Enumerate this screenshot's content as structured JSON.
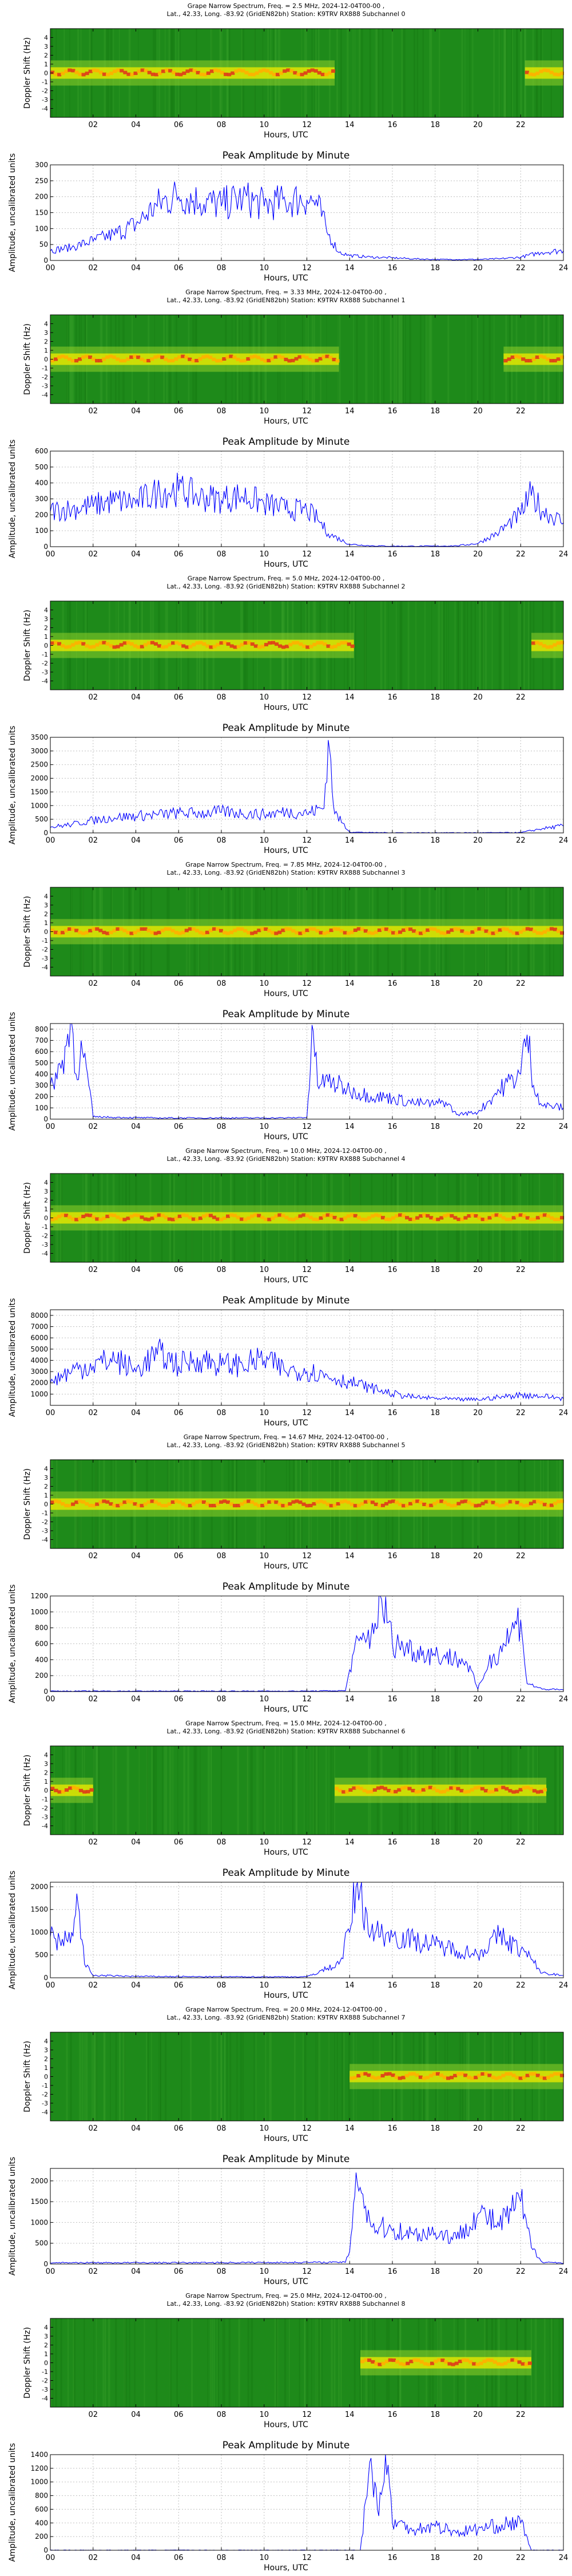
{
  "figure": {
    "common": {
      "spectrum_header_suffix": "Lat., 42.33, Long. -83.92 (GridEN82bh) Station: K9TRV RX888 ",
      "spectrum_ylabel": "Doppler Shift (Hz)",
      "xlabel": "Hours, UTC",
      "amp_title": "Peak Amplitude by Minute",
      "amp_ylabel": "Amplitude, uncalibrated units"
    },
    "channels": [
      {
        "title_line1": "Grape Narrow Spectrum, Freq. = 2.5 MHz, 2024-12-04T00-00 ,",
        "subchannel": "Subchannel 0"
      },
      {
        "title_line1": "Grape Narrow Spectrum, Freq. = 3.33 MHz, 2024-12-04T00-00 ,",
        "subchannel": "Subchannel 1"
      },
      {
        "title_line1": "Grape Narrow Spectrum, Freq. = 5.0 MHz, 2024-12-04T00-00 ,",
        "subchannel": "Subchannel 2"
      },
      {
        "title_line1": "Grape Narrow Spectrum, Freq. = 7.85 MHz, 2024-12-04T00-00 ,",
        "subchannel": "Subchannel 3"
      },
      {
        "title_line1": "Grape Narrow Spectrum, Freq. = 10.0 MHz, 2024-12-04T00-00 ,",
        "subchannel": "Subchannel 4"
      },
      {
        "title_line1": "Grape Narrow Spectrum, Freq. = 14.67 MHz, 2024-12-04T00-00 ,",
        "subchannel": "Subchannel 5"
      },
      {
        "title_line1": "Grape Narrow Spectrum, Freq. = 15.0 MHz, 2024-12-04T00-00 ,",
        "subchannel": "Subchannel 6"
      },
      {
        "title_line1": "Grape Narrow Spectrum, Freq. = 20.0 MHz, 2024-12-04T00-00 ,",
        "subchannel": "Subchannel 7"
      },
      {
        "title_line1": "Grape Narrow Spectrum, Freq. = 25.0 MHz, 2024-12-04T00-00 ,",
        "subchannel": "Subchannel 8"
      }
    ]
  },
  "chart_data": [
    {
      "type": "heatmap",
      "name": "spectrum-2.5",
      "xlim": [
        0,
        24
      ],
      "ylim": [
        -5,
        5
      ],
      "x_ticks": [
        "02",
        "04",
        "06",
        "08",
        "10",
        "12",
        "14",
        "16",
        "18",
        "20",
        "22"
      ],
      "y_ticks": [
        "4",
        "3",
        "2",
        "1",
        "0",
        "-1",
        "-2",
        "-3",
        "-4"
      ],
      "signal_segments": [
        [
          0,
          13.3
        ],
        [
          22.2,
          24
        ]
      ],
      "colormap": "green-yellow-red"
    },
    {
      "type": "line",
      "name": "amp-2.5",
      "xlim": [
        0,
        24
      ],
      "ylim": [
        0,
        300
      ],
      "x_ticks": [
        "00",
        "02",
        "04",
        "06",
        "08",
        "10",
        "12",
        "14",
        "16",
        "18",
        "20",
        "22",
        "24"
      ],
      "y_ticks": [
        "0",
        "50",
        "100",
        "150",
        "200",
        "250",
        "300"
      ],
      "x": [
        0,
        1,
        2,
        3,
        4,
        5,
        6,
        7,
        8,
        9,
        10,
        11,
        12,
        12.5,
        13,
        13.5,
        14,
        15,
        16,
        17,
        18,
        19,
        20,
        21,
        22,
        23,
        24
      ],
      "y": [
        30,
        40,
        60,
        80,
        110,
        170,
        200,
        180,
        170,
        190,
        170,
        180,
        190,
        170,
        80,
        25,
        15,
        10,
        8,
        5,
        3,
        3,
        3,
        5,
        10,
        25,
        30
      ]
    },
    {
      "type": "heatmap",
      "name": "spectrum-3.33",
      "xlim": [
        0,
        24
      ],
      "ylim": [
        -5,
        5
      ],
      "x_ticks": [
        "02",
        "04",
        "06",
        "08",
        "10",
        "12",
        "14",
        "16",
        "18",
        "20",
        "22"
      ],
      "y_ticks": [
        "4",
        "3",
        "2",
        "1",
        "0",
        "-1",
        "-2",
        "-3",
        "-4"
      ],
      "signal_segments": [
        [
          0,
          13.5
        ],
        [
          21.2,
          24
        ]
      ],
      "colormap": "green-yellow-red"
    },
    {
      "type": "line",
      "name": "amp-3.33",
      "xlim": [
        0,
        24
      ],
      "ylim": [
        0,
        600
      ],
      "x_ticks": [
        "00",
        "02",
        "04",
        "06",
        "08",
        "10",
        "12",
        "14",
        "16",
        "18",
        "20",
        "22",
        "24"
      ],
      "y_ticks": [
        "0",
        "100",
        "200",
        "300",
        "400",
        "500",
        "600"
      ],
      "x": [
        0,
        1,
        2,
        3,
        4,
        5,
        6,
        7,
        8,
        9,
        10,
        11,
        12,
        12.5,
        13,
        14,
        15,
        16,
        17,
        18,
        19,
        20,
        21,
        22,
        22.5,
        23,
        24
      ],
      "y": [
        220,
        230,
        250,
        280,
        270,
        330,
        350,
        300,
        290,
        310,
        260,
        230,
        220,
        170,
        80,
        15,
        5,
        3,
        3,
        3,
        5,
        20,
        90,
        200,
        320,
        220,
        150
      ]
    },
    {
      "type": "heatmap",
      "name": "spectrum-5.0",
      "xlim": [
        0,
        24
      ],
      "ylim": [
        -5,
        5
      ],
      "x_ticks": [
        "02",
        "04",
        "06",
        "08",
        "10",
        "12",
        "14",
        "16",
        "18",
        "20",
        "22"
      ],
      "y_ticks": [
        "4",
        "3",
        "2",
        "1",
        "0",
        "-1",
        "-2",
        "-3",
        "-4"
      ],
      "signal_segments": [
        [
          0,
          14.2
        ],
        [
          22.5,
          24
        ]
      ],
      "colormap": "green-yellow-red"
    },
    {
      "type": "line",
      "name": "amp-5.0",
      "xlim": [
        0,
        24
      ],
      "ylim": [
        0,
        3500
      ],
      "x_ticks": [
        "00",
        "02",
        "04",
        "06",
        "08",
        "10",
        "12",
        "14",
        "16",
        "18",
        "20",
        "22",
        "24"
      ],
      "y_ticks": [
        "0",
        "500",
        "1000",
        "1500",
        "2000",
        "2500",
        "3000",
        "3500"
      ],
      "x": [
        0,
        1,
        2,
        3,
        4,
        5,
        6,
        7,
        8,
        9,
        10,
        11,
        12,
        12.8,
        13,
        13.3,
        14,
        15,
        16,
        18,
        20,
        22,
        23,
        24
      ],
      "y": [
        200,
        300,
        450,
        550,
        600,
        650,
        700,
        700,
        750,
        700,
        650,
        750,
        700,
        900,
        3400,
        700,
        30,
        10,
        5,
        5,
        5,
        10,
        150,
        250
      ]
    },
    {
      "type": "heatmap",
      "name": "spectrum-7.85",
      "xlim": [
        0,
        24
      ],
      "ylim": [
        -5,
        5
      ],
      "x_ticks": [
        "02",
        "04",
        "06",
        "08",
        "10",
        "12",
        "14",
        "16",
        "18",
        "20",
        "22"
      ],
      "y_ticks": [
        "4",
        "3",
        "2",
        "1",
        "0",
        "-1",
        "-2",
        "-3",
        "-4"
      ],
      "signal_segments": [
        [
          0,
          24
        ]
      ],
      "colormap": "green-yellow-red"
    },
    {
      "type": "line",
      "name": "amp-7.85",
      "xlim": [
        0,
        24
      ],
      "ylim": [
        0,
        850
      ],
      "x_ticks": [
        "00",
        "02",
        "04",
        "06",
        "08",
        "10",
        "12",
        "14",
        "16",
        "18",
        "20",
        "22",
        "24"
      ],
      "y_ticks": [
        "0",
        "100",
        "200",
        "300",
        "400",
        "500",
        "600",
        "700",
        "800"
      ],
      "x": [
        0,
        0.5,
        1,
        1.2,
        1.5,
        1.8,
        2,
        3,
        5,
        7,
        9,
        11,
        12,
        12.3,
        12.5,
        13,
        14,
        15,
        16,
        17,
        18,
        18.5,
        19,
        20,
        21,
        22,
        22.3,
        22.6,
        23,
        24
      ],
      "y": [
        300,
        450,
        850,
        400,
        600,
        300,
        20,
        15,
        10,
        10,
        10,
        10,
        15,
        780,
        300,
        330,
        250,
        200,
        180,
        140,
        130,
        150,
        40,
        60,
        250,
        400,
        750,
        300,
        120,
        100
      ]
    },
    {
      "type": "heatmap",
      "name": "spectrum-10.0",
      "xlim": [
        0,
        24
      ],
      "ylim": [
        -5,
        5
      ],
      "x_ticks": [
        "02",
        "04",
        "06",
        "08",
        "10",
        "12",
        "14",
        "16",
        "18",
        "20",
        "22"
      ],
      "y_ticks": [
        "4",
        "3",
        "2",
        "1",
        "0",
        "-1",
        "-2",
        "-3",
        "-4"
      ],
      "signal_segments": [
        [
          0,
          24
        ]
      ],
      "colormap": "green-yellow-red"
    },
    {
      "type": "line",
      "name": "amp-10.0",
      "xlim": [
        0,
        24
      ],
      "ylim": [
        0,
        8500
      ],
      "x_ticks": [
        "00",
        "02",
        "04",
        "06",
        "08",
        "10",
        "12",
        "14",
        "16",
        "18",
        "20",
        "22",
        "24"
      ],
      "y_ticks": [
        "1000",
        "2000",
        "3000",
        "4000",
        "5000",
        "6000",
        "7000",
        "8000"
      ],
      "x": [
        0,
        1,
        2,
        3,
        4,
        5,
        6,
        7,
        8,
        9,
        10,
        11,
        12,
        13,
        14,
        15,
        16,
        17,
        18,
        19,
        20,
        21,
        22,
        23,
        24
      ],
      "y": [
        2000,
        3000,
        3500,
        4000,
        3000,
        4500,
        3500,
        4000,
        3500,
        3500,
        4000,
        3000,
        3000,
        2500,
        2000,
        1500,
        1000,
        700,
        600,
        500,
        500,
        700,
        900,
        800,
        600
      ]
    },
    {
      "type": "heatmap",
      "name": "spectrum-14.67",
      "xlim": [
        0,
        24
      ],
      "ylim": [
        -5,
        5
      ],
      "x_ticks": [
        "02",
        "04",
        "06",
        "08",
        "10",
        "12",
        "14",
        "16",
        "18",
        "20",
        "22"
      ],
      "y_ticks": [
        "4",
        "3",
        "2",
        "1",
        "0",
        "-1",
        "-2",
        "-3",
        "-4"
      ],
      "signal_segments": [
        [
          0,
          24
        ]
      ],
      "colormap": "green-yellow-red"
    },
    {
      "type": "line",
      "name": "amp-14.67",
      "xlim": [
        0,
        24
      ],
      "ylim": [
        0,
        1200
      ],
      "x_ticks": [
        "00",
        "02",
        "04",
        "06",
        "08",
        "10",
        "12",
        "14",
        "16",
        "18",
        "20",
        "22",
        "24"
      ],
      "y_ticks": [
        "0",
        "200",
        "400",
        "600",
        "800",
        "1000",
        "1200"
      ],
      "x": [
        0,
        6,
        12,
        13.8,
        14.2,
        15,
        15.5,
        16,
        17,
        18,
        19,
        19.5,
        20,
        20.5,
        21,
        21.5,
        22,
        22.3,
        23,
        24
      ],
      "y": [
        5,
        5,
        5,
        10,
        500,
        700,
        1150,
        600,
        500,
        450,
        400,
        350,
        30,
        350,
        500,
        700,
        900,
        100,
        30,
        20
      ]
    },
    {
      "type": "heatmap",
      "name": "spectrum-15.0",
      "xlim": [
        0,
        24
      ],
      "ylim": [
        -5,
        5
      ],
      "x_ticks": [
        "02",
        "04",
        "06",
        "08",
        "10",
        "12",
        "14",
        "16",
        "18",
        "20",
        "22"
      ],
      "y_ticks": [
        "4",
        "3",
        "2",
        "1",
        "0",
        "-1",
        "-2",
        "-3",
        "-4"
      ],
      "signal_segments": [
        [
          0,
          2
        ],
        [
          13.3,
          23.2
        ]
      ],
      "colormap": "green-yellow-red"
    },
    {
      "type": "line",
      "name": "amp-15.0",
      "xlim": [
        0,
        24
      ],
      "ylim": [
        0,
        2100
      ],
      "x_ticks": [
        "00",
        "02",
        "04",
        "06",
        "08",
        "10",
        "12",
        "14",
        "16",
        "18",
        "20",
        "22",
        "24"
      ],
      "y_ticks": [
        "0",
        "500",
        "1000",
        "1500",
        "2000"
      ],
      "x": [
        0,
        0.5,
        1,
        1.3,
        1.6,
        2,
        4,
        8,
        12,
        13.5,
        14,
        14.3,
        15,
        16,
        17,
        18,
        19,
        20,
        21,
        22,
        22.5,
        23,
        24
      ],
      "y": [
        900,
        700,
        1000,
        1600,
        300,
        50,
        30,
        20,
        20,
        300,
        1000,
        2000,
        1000,
        900,
        800,
        700,
        600,
        500,
        900,
        600,
        400,
        100,
        50
      ]
    },
    {
      "type": "heatmap",
      "name": "spectrum-20.0",
      "xlim": [
        0,
        24
      ],
      "ylim": [
        -5,
        5
      ],
      "x_ticks": [
        "02",
        "04",
        "06",
        "08",
        "10",
        "12",
        "14",
        "16",
        "18",
        "20",
        "22"
      ],
      "y_ticks": [
        "4",
        "3",
        "2",
        "1",
        "0",
        "-1",
        "-2",
        "-3",
        "-4"
      ],
      "signal_segments": [
        [
          14,
          24
        ]
      ],
      "colormap": "green-yellow-red"
    },
    {
      "type": "line",
      "name": "amp-20.0",
      "xlim": [
        0,
        24
      ],
      "ylim": [
        0,
        2300
      ],
      "x_ticks": [
        "00",
        "02",
        "04",
        "06",
        "08",
        "10",
        "12",
        "14",
        "16",
        "18",
        "20",
        "22",
        "24"
      ],
      "y_ticks": [
        "0",
        "500",
        "1000",
        "1500",
        "2000"
      ],
      "x": [
        0,
        6,
        13.8,
        14,
        14.3,
        15,
        16,
        17,
        18,
        19,
        20,
        21,
        22,
        22.5,
        23,
        24
      ],
      "y": [
        30,
        30,
        40,
        300,
        2200,
        900,
        800,
        700,
        750,
        600,
        1200,
        900,
        1500,
        400,
        50,
        20
      ]
    },
    {
      "type": "heatmap",
      "name": "spectrum-25.0",
      "xlim": [
        0,
        24
      ],
      "ylim": [
        -5,
        5
      ],
      "x_ticks": [
        "02",
        "04",
        "06",
        "08",
        "10",
        "12",
        "14",
        "16",
        "18",
        "20",
        "22"
      ],
      "y_ticks": [
        "4",
        "3",
        "2",
        "1",
        "0",
        "-1",
        "-2",
        "-3",
        "-4"
      ],
      "signal_segments": [
        [
          14.5,
          22.5
        ]
      ],
      "colormap": "green-yellow-red"
    },
    {
      "type": "line",
      "name": "amp-25.0",
      "xlim": [
        0,
        24
      ],
      "ylim": [
        0,
        1400
      ],
      "x_ticks": [
        "00",
        "02",
        "04",
        "06",
        "08",
        "10",
        "12",
        "14",
        "16",
        "18",
        "20",
        "22",
        "24"
      ],
      "y_ticks": [
        "0",
        "200",
        "400",
        "600",
        "800",
        "1000",
        "1200",
        "1400"
      ],
      "x": [
        0,
        8,
        14.5,
        15,
        15.3,
        15.8,
        16,
        17,
        18,
        19,
        20,
        21,
        22,
        22.5,
        23,
        24
      ],
      "y": [
        0,
        0,
        0,
        1350,
        600,
        1250,
        400,
        300,
        350,
        250,
        300,
        350,
        400,
        0,
        0,
        0
      ]
    }
  ]
}
